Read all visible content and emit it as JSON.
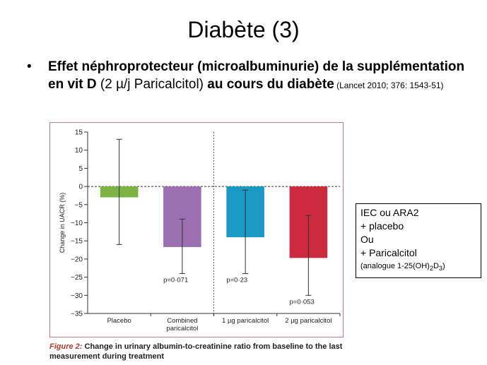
{
  "slide": {
    "title": "Diabète (3)",
    "bullet": {
      "symbol": "•",
      "bold_1": "Effet néphroprotecteur (microalbuminurie) de la supplémentation en vit D",
      "normal_1": " (2 µ/j Paricalcitol) ",
      "bold_2": "au cours du diabète",
      "reference": " (Lancet 2010; 376: 1543-51)"
    }
  },
  "side_box": {
    "line1": "IEC ou ARA2",
    "line2": "+ placebo",
    "line3": "Ou",
    "line4": "+ Paricalcitol",
    "line5_prefix": "(analogue  1-25(OH)",
    "line5_sub1": "2",
    "line5_mid": "D",
    "line5_sub2": "3",
    "line5_suffix": ")"
  },
  "figure_caption": {
    "label": "Figure 2:",
    "text": " Change in urinary albumin-to-creatinine ratio from baseline to the last measurement during treatment"
  },
  "chart_data": {
    "type": "bar",
    "ylabel": "Change in UACR (%)",
    "ylim": [
      -35,
      15
    ],
    "yticks": [
      15,
      10,
      5,
      0,
      -5,
      -10,
      -15,
      -20,
      -25,
      -30,
      -35
    ],
    "ytick_labels": [
      "15",
      "10",
      "5",
      "0",
      "−5",
      "−10",
      "−15",
      "−20",
      "−25",
      "−30",
      "−35"
    ],
    "categories": [
      "Placebo",
      "Combined paricalcitol",
      "1 µg paricalcitol",
      "2 µg paricalcitol"
    ],
    "category_lines": [
      [
        "Placebo"
      ],
      [
        "Combined",
        "paricalcitol"
      ],
      [
        "1 µg paricalcitol"
      ],
      [
        "2 µg paricalcitol"
      ]
    ],
    "values": [
      -3,
      -16.7,
      -14,
      -19.7
    ],
    "error_low": [
      -16,
      -24,
      -24,
      -30
    ],
    "error_high": [
      13,
      -9,
      -1,
      -8
    ],
    "colors": [
      "#7cb342",
      "#9c6fb0",
      "#1a99c4",
      "#cc2a3f"
    ],
    "pvalues": [
      "",
      "p=0·071",
      "p=0·23",
      "p=0·053"
    ],
    "grid": false,
    "separator_after_index": 1
  }
}
